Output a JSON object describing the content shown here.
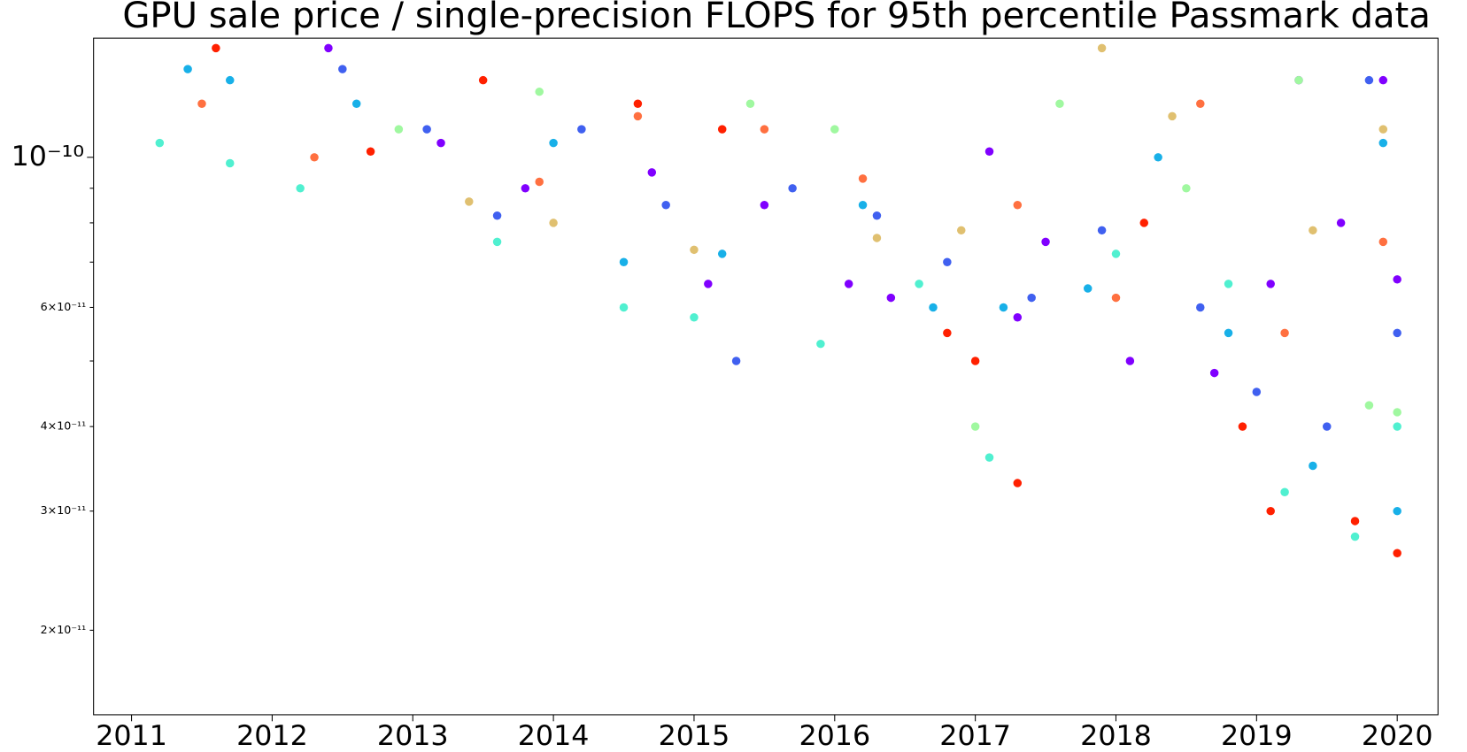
{
  "chart_data": {
    "type": "scatter",
    "title": "GPU sale price / single-precision FLOPS for 95th percentile Passmark data",
    "xlim": [
      2010.73,
      2020.29
    ],
    "xticks": [
      2011,
      2012,
      2013,
      2014,
      2015,
      2016,
      2017,
      2018,
      2019,
      2020
    ],
    "ylim": [
      1.5e-11,
      1.5e-10
    ],
    "ylog": true,
    "yticks": [
      {
        "value": 2e-11,
        "label": "2×10⁻¹¹"
      },
      {
        "value": 3e-11,
        "label": "3×10⁻¹¹"
      },
      {
        "value": 4e-11,
        "label": "4×10⁻¹¹"
      },
      {
        "value": 6e-11,
        "label": "6×10⁻¹¹"
      },
      {
        "value": 1e-10,
        "label": "10⁻¹⁰"
      }
    ],
    "yminor_ticks": [
      5e-11,
      7e-11,
      8e-11,
      9e-11
    ],
    "series": [
      {
        "color": "#8000ff",
        "x": [
          2012.4,
          2013.2,
          2013.8,
          2014.7,
          2015.1,
          2015.5,
          2016.1,
          2016.4,
          2017.1,
          2017.3,
          2017.5,
          2018.1,
          2018.7,
          2019.1,
          2019.3,
          2019.6,
          2019.9,
          2020.0
        ],
        "values": [
          1.45e-10,
          1.05e-10,
          9e-11,
          9.5e-11,
          6.5e-11,
          8.5e-11,
          6.5e-11,
          6.2e-11,
          1.02e-10,
          5.8e-11,
          7.5e-11,
          5e-11,
          4.8e-11,
          6.5e-11,
          1.3e-10,
          8e-11,
          1.3e-10,
          6.6e-11
        ]
      },
      {
        "color": "#4060f0",
        "x": [
          2012.5,
          2013.1,
          2013.6,
          2014.2,
          2014.8,
          2015.3,
          2015.7,
          2016.3,
          2016.8,
          2017.4,
          2017.9,
          2018.6,
          2019.0,
          2019.5,
          2019.8,
          2020.0
        ],
        "values": [
          1.35e-10,
          1.1e-10,
          8.2e-11,
          1.1e-10,
          8.5e-11,
          5e-11,
          9e-11,
          8.2e-11,
          7e-11,
          6.2e-11,
          7.8e-11,
          6e-11,
          4.5e-11,
          4e-11,
          1.3e-10,
          5.5e-11
        ]
      },
      {
        "color": "#18b0e8",
        "x": [
          2011.4,
          2011.7,
          2012.6,
          2014.0,
          2014.5,
          2015.2,
          2016.2,
          2016.7,
          2017.2,
          2017.8,
          2018.3,
          2018.8,
          2019.4,
          2019.9,
          2020.0
        ],
        "values": [
          1.35e-10,
          1.3e-10,
          1.2e-10,
          1.05e-10,
          7e-11,
          7.2e-11,
          8.5e-11,
          6e-11,
          6e-11,
          6.4e-11,
          1e-10,
          5.5e-11,
          3.5e-11,
          1.05e-10,
          3e-11
        ]
      },
      {
        "color": "#50f0d0",
        "x": [
          2011.2,
          2011.7,
          2012.2,
          2013.6,
          2014.5,
          2015.0,
          2015.9,
          2016.6,
          2017.1,
          2018.0,
          2018.8,
          2019.2,
          2019.7,
          2020.0
        ],
        "values": [
          1.05e-10,
          9.8e-11,
          9e-11,
          7.5e-11,
          6e-11,
          5.8e-11,
          5.3e-11,
          6.5e-11,
          3.6e-11,
          7.2e-11,
          6.5e-11,
          3.2e-11,
          2.75e-11,
          4e-11
        ]
      },
      {
        "color": "#a0f8a0",
        "x": [
          2012.9,
          2013.9,
          2015.4,
          2016.0,
          2017.0,
          2017.6,
          2018.5,
          2019.3,
          2019.8,
          2020.0
        ],
        "values": [
          1.1e-10,
          1.25e-10,
          1.2e-10,
          1.1e-10,
          4e-11,
          1.2e-10,
          9e-11,
          1.3e-10,
          4.3e-11,
          4.2e-11
        ]
      },
      {
        "color": "#e0c070",
        "x": [
          2013.4,
          2014.0,
          2015.0,
          2016.3,
          2016.9,
          2017.9,
          2018.4,
          2019.4,
          2019.9
        ],
        "values": [
          8.6e-11,
          8e-11,
          7.3e-11,
          7.6e-11,
          7.8e-11,
          1.45e-10,
          1.15e-10,
          7.8e-11,
          1.1e-10
        ]
      },
      {
        "color": "#ff7040",
        "x": [
          2011.5,
          2012.3,
          2013.9,
          2014.6,
          2015.5,
          2016.2,
          2017.3,
          2018.0,
          2018.6,
          2019.2,
          2019.9
        ],
        "values": [
          1.2e-10,
          1e-10,
          9.2e-11,
          1.15e-10,
          1.1e-10,
          9.3e-11,
          8.5e-11,
          6.2e-11,
          1.2e-10,
          5.5e-11,
          7.5e-11
        ]
      },
      {
        "color": "#ff2000",
        "x": [
          2011.6,
          2012.7,
          2013.5,
          2014.6,
          2015.2,
          2016.8,
          2017.0,
          2017.3,
          2018.2,
          2018.9,
          2019.1,
          2019.7,
          2020.0
        ],
        "values": [
          1.45e-10,
          1.02e-10,
          1.3e-10,
          1.2e-10,
          1.1e-10,
          5.5e-11,
          5e-11,
          3.3e-11,
          8e-11,
          4e-11,
          3e-11,
          2.9e-11,
          2.6e-11
        ]
      }
    ]
  }
}
